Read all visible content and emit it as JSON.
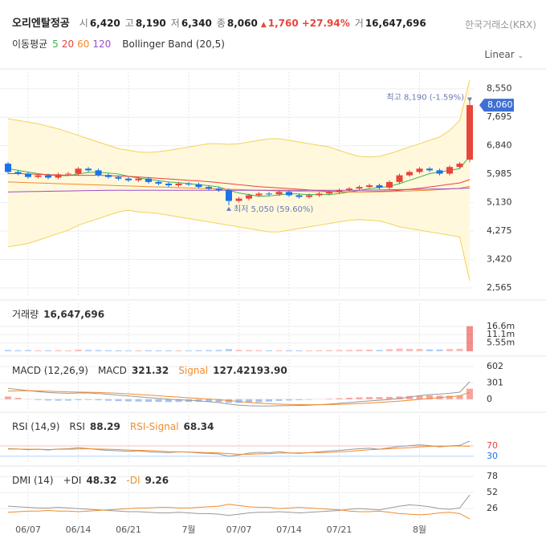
{
  "header": {
    "name": "오리엔탈정공",
    "fields": [
      {
        "label": "시",
        "value": "6,420"
      },
      {
        "label": "고",
        "value": "8,190"
      },
      {
        "label": "저",
        "value": "6,340"
      },
      {
        "label": "종",
        "value": "8,060"
      }
    ],
    "change": "1,760",
    "change_pct": "+27.94%",
    "volume_label": "거",
    "volume": "16,647,696",
    "exchange": "한국거래소(KRX)",
    "scale": "Linear"
  },
  "chart_data": [
    {
      "type": "candlestick",
      "categories": [
        null,
        null,
        "06/07",
        null,
        null,
        null,
        null,
        "06/14",
        null,
        null,
        null,
        null,
        "06/21",
        null,
        null,
        null,
        null,
        null,
        "7월",
        null,
        null,
        null,
        null,
        "07/07",
        null,
        null,
        null,
        null,
        "07/14",
        null,
        null,
        null,
        null,
        "07/21",
        null,
        null,
        null,
        null,
        null,
        null,
        null,
        "8월",
        null,
        null,
        null,
        null,
        null
      ],
      "ylim": [
        2300,
        9050
      ],
      "yticks": [
        {
          "value": 8550,
          "label": "8,550"
        },
        {
          "value": 7695,
          "label": "7,695"
        },
        {
          "value": 6840,
          "label": "6,840"
        },
        {
          "value": 5985,
          "label": "5,985"
        },
        {
          "value": 5130,
          "label": "5,130"
        },
        {
          "value": 4275,
          "label": "4,275"
        },
        {
          "value": 3420,
          "label": "3,420"
        },
        {
          "value": 2565,
          "label": "2,565"
        }
      ],
      "up_color": "#e8453c",
      "down_color": "#1a73e8",
      "candles": {
        "open": [
          6300,
          6050,
          6000,
          5900,
          5950,
          5880,
          5980,
          6000,
          6150,
          6100,
          5960,
          5900,
          5850,
          5800,
          5850,
          5750,
          5700,
          5650,
          5700,
          5680,
          5600,
          5550,
          5500,
          5180,
          5250,
          5350,
          5400,
          5380,
          5450,
          5350,
          5300,
          5350,
          5400,
          5450,
          5500,
          5550,
          5600,
          5650,
          5580,
          5750,
          5950,
          6050,
          6150,
          6100,
          6000,
          6200,
          6420
        ],
        "high": [
          6350,
          6100,
          6050,
          6000,
          6000,
          6030,
          6050,
          6200,
          6200,
          6150,
          6010,
          5950,
          5900,
          5900,
          5900,
          5800,
          5750,
          5750,
          5750,
          5730,
          5650,
          5600,
          5550,
          5300,
          5400,
          5450,
          5450,
          5500,
          5500,
          5400,
          5400,
          5450,
          5500,
          5550,
          5600,
          5650,
          5700,
          5700,
          5800,
          6000,
          6100,
          6200,
          6200,
          6150,
          6250,
          6350,
          8190
        ],
        "low": [
          6000,
          5950,
          5850,
          5850,
          5830,
          5830,
          5930,
          5950,
          6050,
          5910,
          5850,
          5800,
          5750,
          5750,
          5700,
          5650,
          5600,
          5600,
          5630,
          5550,
          5500,
          5450,
          5050,
          5130,
          5200,
          5300,
          5330,
          5330,
          5300,
          5250,
          5250,
          5300,
          5350,
          5400,
          5450,
          5500,
          5550,
          5530,
          5530,
          5700,
          5900,
          6000,
          6050,
          5950,
          5950,
          6150,
          6340
        ],
        "close": [
          6050,
          6000,
          5900,
          5950,
          5880,
          5980,
          6000,
          6150,
          6100,
          5960,
          5900,
          5850,
          5800,
          5850,
          5750,
          5700,
          5650,
          5700,
          5680,
          5600,
          5550,
          5500,
          5180,
          5250,
          5350,
          5400,
          5380,
          5450,
          5350,
          5300,
          5350,
          5400,
          5450,
          5500,
          5550,
          5600,
          5650,
          5580,
          5750,
          5950,
          6050,
          6150,
          6100,
          6000,
          6200,
          6300,
          8060
        ]
      },
      "moving_averages": {
        "label": "이동평균",
        "series": [
          {
            "name": "5",
            "color": "#3cb44b",
            "values": [
              6150,
              6100,
              6050,
              6000,
              5960,
              5940,
              5940,
              5990,
              6040,
              6040,
              6020,
              5990,
              5920,
              5870,
              5830,
              5790,
              5750,
              5730,
              5700,
              5670,
              5640,
              5600,
              5500,
              5420,
              5370,
              5320,
              5330,
              5360,
              5400,
              5390,
              5370,
              5370,
              5370,
              5400,
              5450,
              5500,
              5550,
              5580,
              5620,
              5700,
              5800,
              5900,
              6000,
              6050,
              6100,
              6150,
              6530
            ]
          },
          {
            "name": "20",
            "color": "#e8433c",
            "values": [
              6000,
              6000,
              5990,
              5980,
              5970,
              5960,
              5950,
              5950,
              5950,
              5950,
              5940,
              5930,
              5920,
              5900,
              5880,
              5860,
              5840,
              5820,
              5800,
              5780,
              5760,
              5730,
              5700,
              5670,
              5640,
              5610,
              5590,
              5570,
              5550,
              5530,
              5510,
              5490,
              5470,
              5460,
              5450,
              5450,
              5460,
              5470,
              5480,
              5500,
              5530,
              5560,
              5600,
              5640,
              5680,
              5720,
              5820
            ]
          },
          {
            "name": "60",
            "color": "#f08c2e",
            "values": [
              5750,
              5740,
              5730,
              5720,
              5710,
              5700,
              5690,
              5680,
              5670,
              5660,
              5650,
              5640,
              5630,
              5620,
              5610,
              5600,
              5590,
              5580,
              5570,
              5560,
              5550,
              5540,
              5530,
              5520,
              5510,
              5500,
              5490,
              5480,
              5475,
              5470,
              5465,
              5460,
              5455,
              5450,
              5450,
              5450,
              5450,
              5455,
              5460,
              5470,
              5480,
              5490,
              5500,
              5520,
              5540,
              5560,
              5620
            ]
          },
          {
            "name": "120",
            "color": "#9c4dcc",
            "values": [
              5450,
              5455,
              5460,
              5465,
              5470,
              5475,
              5480,
              5485,
              5490,
              5495,
              5500,
              5500,
              5500,
              5500,
              5500,
              5500,
              5500,
              5500,
              5500,
              5500,
              5500,
              5500,
              5500,
              5500,
              5500,
              5500,
              5500,
              5500,
              5500,
              5500,
              5500,
              5500,
              5500,
              5500,
              5500,
              5500,
              5505,
              5510,
              5515,
              5520,
              5525,
              5530,
              5535,
              5540,
              5545,
              5550,
              5570
            ]
          }
        ]
      },
      "bollinger": {
        "name": "Bollinger Band (20,5)",
        "color": "#f3d25a",
        "fill": "#fff8dc",
        "upper": [
          7650,
          7600,
          7550,
          7500,
          7420,
          7350,
          7250,
          7150,
          7050,
          6950,
          6850,
          6750,
          6700,
          6650,
          6640,
          6660,
          6700,
          6750,
          6800,
          6850,
          6900,
          6900,
          6880,
          6900,
          6950,
          7000,
          7050,
          7050,
          7000,
          6950,
          6900,
          6850,
          6800,
          6700,
          6600,
          6520,
          6500,
          6520,
          6600,
          6700,
          6800,
          6900,
          7000,
          7100,
          7300,
          7600,
          8810
        ],
        "lower": [
          3800,
          3850,
          3900,
          4000,
          4100,
          4200,
          4300,
          4450,
          4550,
          4650,
          4750,
          4850,
          4900,
          4850,
          4830,
          4800,
          4750,
          4700,
          4650,
          4600,
          4550,
          4500,
          4450,
          4400,
          4350,
          4300,
          4250,
          4250,
          4300,
          4350,
          4400,
          4450,
          4500,
          4550,
          4600,
          4620,
          4600,
          4580,
          4500,
          4400,
          4350,
          4300,
          4250,
          4200,
          4150,
          4100,
          2780
        ]
      },
      "annotations": [
        {
          "text": "최고 8,190 (-1.59%)",
          "index": 46,
          "value": 8190
        },
        {
          "text": "최저 5,050 (59.60%)",
          "index": 22,
          "value": 5050
        }
      ],
      "last_price": {
        "value": 8060,
        "label": "8,060"
      }
    },
    {
      "type": "bar",
      "title": "거래량",
      "readout": "16,647,696",
      "ylim": [
        0,
        32000000
      ],
      "yticks": [
        {
          "value": 16600000,
          "label": "16.6m"
        },
        {
          "value": 11100000,
          "label": "11.1m"
        },
        {
          "value": 5550000,
          "label": "5.55m"
        }
      ],
      "values": [
        900000,
        700000,
        800000,
        600000,
        650000,
        700000,
        600000,
        1100000,
        900000,
        800000,
        700000,
        650000,
        600000,
        550000,
        700000,
        600000,
        650000,
        600000,
        550000,
        700000,
        800000,
        900000,
        1500000,
        900000,
        800000,
        700000,
        650000,
        600000,
        700000,
        650000,
        600000,
        650000,
        700000,
        800000,
        900000,
        1000000,
        1100000,
        900000,
        1400000,
        1800000,
        1600000,
        1500000,
        1300000,
        1200000,
        1500000,
        1700000,
        16647696
      ]
    },
    {
      "type": "line",
      "title": "MACD (12,26,9)",
      "ylim": [
        -180,
        735
      ],
      "yticks": [
        602,
        301,
        0
      ],
      "series": [
        {
          "name": "MACD",
          "color": "#999999",
          "values": [
            200,
            180,
            160,
            140,
            125,
            115,
            110,
            115,
            115,
            105,
            90,
            75,
            60,
            45,
            30,
            15,
            0,
            -10,
            -20,
            -30,
            -45,
            -60,
            -90,
            -110,
            -120,
            -125,
            -125,
            -120,
            -118,
            -115,
            -110,
            -100,
            -90,
            -75,
            -60,
            -45,
            -30,
            -20,
            -5,
            15,
            40,
            65,
            85,
            95,
            110,
            130,
            321.32
          ]
        },
        {
          "name": "Signal",
          "color": "#f08c2e",
          "readout": "127.42193.90",
          "values": [
            150,
            155,
            157,
            154,
            148,
            141,
            135,
            131,
            128,
            124,
            117,
            109,
            99,
            88,
            77,
            64,
            51,
            39,
            27,
            16,
            4,
            -9,
            -25,
            -42,
            -58,
            -71,
            -82,
            -90,
            -95,
            -99,
            -101,
            -101,
            -99,
            -94,
            -87,
            -79,
            -69,
            -59,
            -48,
            -35,
            -20,
            -3,
            14,
            30,
            46,
            63,
            127.42
          ]
        }
      ],
      "histogram": {
        "up_color": "#f5a59f",
        "down_color": "#a6c3ef",
        "values": [
          50,
          25,
          3,
          -14,
          -23,
          -26,
          -25,
          -16,
          -13,
          -19,
          -27,
          -34,
          -39,
          -43,
          -47,
          -49,
          -51,
          -49,
          -47,
          -46,
          -49,
          -51,
          -65,
          -68,
          -62,
          -54,
          -43,
          -30,
          -23,
          -16,
          -9,
          1,
          9,
          19,
          27,
          34,
          39,
          39,
          43,
          50,
          60,
          68,
          71,
          65,
          64,
          67,
          193.9
        ]
      }
    },
    {
      "type": "line",
      "title": "RSI (14,9)",
      "ylim": [
        2,
        187
      ],
      "yticks": [
        70,
        30
      ],
      "ytick_colors": [
        "#e8453c",
        "#1a73e8"
      ],
      "series": [
        {
          "name": "RSI",
          "color": "#999999",
          "values": [
            60,
            58,
            55,
            57,
            54,
            58,
            59,
            63,
            60,
            55,
            53,
            51,
            49,
            51,
            47,
            45,
            44,
            47,
            46,
            43,
            41,
            39,
            30,
            35,
            42,
            45,
            44,
            48,
            43,
            41,
            44,
            47,
            50,
            53,
            56,
            59,
            61,
            57,
            63,
            68,
            71,
            74,
            71,
            66,
            70,
            72,
            88.29
          ]
        },
        {
          "name": "RSI-Signal",
          "color": "#f08c2e",
          "values": [
            58,
            58,
            57,
            57,
            56,
            57,
            57,
            58,
            59,
            58,
            57,
            56,
            54,
            53,
            52,
            50,
            48,
            47,
            46,
            45,
            44,
            43,
            40,
            38,
            38,
            39,
            40,
            42,
            43,
            43,
            44,
            44,
            45,
            47,
            49,
            52,
            55,
            57,
            59,
            61,
            63,
            66,
            68,
            69,
            69,
            70,
            68.34
          ]
        }
      ]
    },
    {
      "type": "line",
      "title": "DMI (14)",
      "ylim": [
        8,
        90
      ],
      "yticks": [
        78,
        52,
        26
      ],
      "series": [
        {
          "name": "+DI",
          "color": "#999999",
          "values": [
            30,
            29,
            28,
            27,
            27,
            28,
            27,
            26,
            25,
            24,
            23,
            22,
            21,
            21,
            20,
            19,
            19,
            20,
            19,
            18,
            18,
            17,
            15,
            17,
            19,
            20,
            20,
            21,
            20,
            19,
            20,
            21,
            22,
            23,
            25,
            26,
            25,
            24,
            27,
            30,
            32,
            31,
            29,
            26,
            25,
            27,
            48.32
          ]
        },
        {
          "name": "-DI",
          "color": "#f08c2e",
          "values": [
            20,
            21,
            22,
            22,
            23,
            22,
            22,
            21,
            22,
            23,
            24,
            25,
            26,
            27,
            27,
            28,
            28,
            27,
            27,
            28,
            29,
            30,
            33,
            31,
            29,
            28,
            28,
            26,
            27,
            28,
            27,
            26,
            25,
            24,
            22,
            21,
            21,
            22,
            20,
            18,
            17,
            16,
            17,
            19,
            20,
            18,
            9.26
          ]
        }
      ]
    }
  ]
}
